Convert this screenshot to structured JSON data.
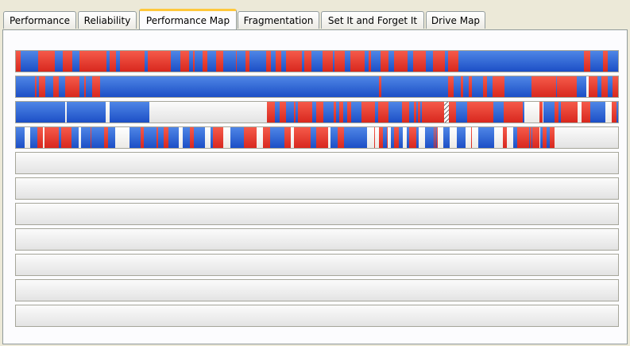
{
  "tabs": [
    "Performance",
    "Reliability",
    "Performance Map",
    "Fragmentation",
    "Set It and Forget It",
    "Drive Map"
  ],
  "active_tab": 2
}
